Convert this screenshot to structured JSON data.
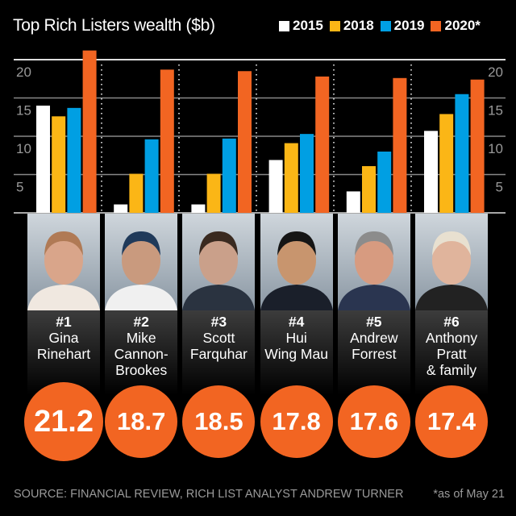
{
  "chart_data": {
    "type": "bar",
    "title": "Top Rich Listers wealth ($b)",
    "categories": [
      "Gina Rinehart",
      "Mike Cannon-Brookes",
      "Scott Farquhar",
      "Hui Wing Mau",
      "Andrew Forrest",
      "Anthony Pratt & family"
    ],
    "series": [
      {
        "name": "2015",
        "color": "#ffffff",
        "values": [
          14.0,
          1.1,
          1.1,
          6.9,
          2.8,
          10.7
        ]
      },
      {
        "name": "2018",
        "color": "#fbb616",
        "values": [
          12.6,
          5.1,
          5.1,
          9.1,
          6.1,
          12.9
        ]
      },
      {
        "name": "2019",
        "color": "#009fe3",
        "values": [
          13.7,
          9.6,
          9.7,
          10.3,
          8.0,
          15.5
        ]
      },
      {
        "name": "2020*",
        "color": "#f26522",
        "values": [
          21.2,
          18.7,
          18.5,
          17.8,
          17.6,
          17.4
        ]
      }
    ],
    "yticks": [
      "5",
      "10",
      "15",
      "20"
    ],
    "ylim": [
      0,
      20
    ],
    "grid": true,
    "legend": "top-right"
  },
  "people": [
    {
      "rank": "#1",
      "name_lines": [
        "Gina",
        "Rinehart"
      ],
      "wealth": "21.2"
    },
    {
      "rank": "#2",
      "name_lines": [
        "Mike",
        "Cannon-",
        "Brookes"
      ],
      "wealth": "18.7"
    },
    {
      "rank": "#3",
      "name_lines": [
        "Scott",
        "Farquhar"
      ],
      "wealth": "18.5"
    },
    {
      "rank": "#4",
      "name_lines": [
        "Hui",
        "Wing Mau"
      ],
      "wealth": "17.8"
    },
    {
      "rank": "#5",
      "name_lines": [
        "Andrew",
        "Forrest"
      ],
      "wealth": "17.6"
    },
    {
      "rank": "#6",
      "name_lines": [
        "Anthony",
        "Pratt",
        "& family"
      ],
      "wealth": "17.4"
    }
  ],
  "footer": {
    "source": "SOURCE: FINANCIAL REVIEW, RICH LIST ANALYST ANDREW TURNER",
    "note": "*as of May 21"
  }
}
